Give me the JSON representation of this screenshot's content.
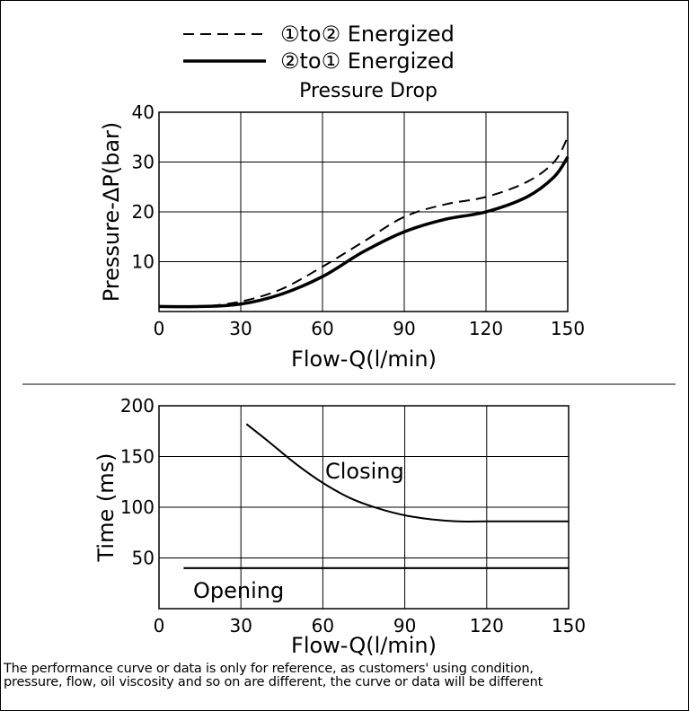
{
  "chart_data": [
    {
      "type": "line",
      "title": "Pressure Drop",
      "xlabel": "Flow-Q(l/min)",
      "ylabel": "Pressure-ΔP(bar)",
      "xlim": [
        0,
        150
      ],
      "ylim": [
        0,
        40
      ],
      "x_ticks": [
        "0",
        "30",
        "60",
        "90",
        "120",
        "150"
      ],
      "y_ticks": [
        "10",
        "20",
        "30",
        "40"
      ],
      "grid": true,
      "legend_position": "top",
      "series": [
        {
          "name": "①to② Energized",
          "style": "dashed",
          "x": [
            0,
            15,
            30,
            45,
            60,
            75,
            90,
            105,
            120,
            135,
            145,
            150
          ],
          "y": [
            1,
            1,
            2,
            4.5,
            9,
            14,
            19,
            21.5,
            23,
            26,
            30,
            35
          ]
        },
        {
          "name": "②to① Energized",
          "style": "solid",
          "x": [
            0,
            15,
            30,
            45,
            60,
            75,
            90,
            105,
            120,
            135,
            145,
            150
          ],
          "y": [
            1,
            1,
            1.5,
            3.5,
            7,
            12,
            16,
            18.5,
            20,
            23,
            27,
            31
          ]
        }
      ]
    },
    {
      "type": "line",
      "title": "",
      "xlabel": "Flow-Q(l/min)",
      "ylabel": "Time (ms)",
      "xlim": [
        0,
        150
      ],
      "ylim": [
        0,
        200
      ],
      "x_ticks": [
        "0",
        "30",
        "60",
        "90",
        "120",
        "150"
      ],
      "y_ticks": [
        "50",
        "100",
        "150",
        "200"
      ],
      "grid": true,
      "series": [
        {
          "name": "Closing",
          "x": [
            32,
            40,
            50,
            60,
            70,
            80,
            90,
            100,
            110,
            120,
            135,
            150
          ],
          "y": [
            182,
            165,
            143,
            124,
            109,
            99,
            92,
            88,
            86,
            86,
            86,
            86
          ]
        },
        {
          "name": "Opening",
          "x": [
            9,
            30,
            60,
            90,
            120,
            150
          ],
          "y": [
            40,
            40,
            40,
            40,
            40,
            40
          ]
        }
      ]
    }
  ],
  "note_lines": [
    "The performance curve or data is only for reference, as customers' using condition,",
    "pressure, flow, oil viscosity and so on are different, the curve or data will be different"
  ]
}
